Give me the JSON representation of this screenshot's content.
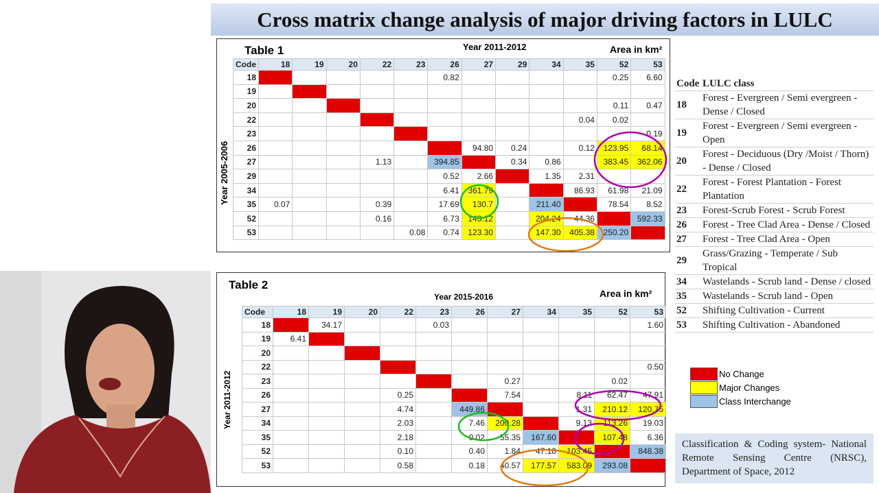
{
  "header": {
    "title": "Cross matrix change analysis of major driving factors in LULC"
  },
  "table1": {
    "title": "Table 1",
    "column_title": "Year 2011-2012",
    "unit": "Area in km²",
    "row_title": "Year 2005-2006",
    "corner": "Code",
    "columns": [
      "18",
      "19",
      "20",
      "22",
      "23",
      "26",
      "27",
      "29",
      "34",
      "35",
      "52",
      "53"
    ],
    "rows": [
      {
        "code": "18",
        "cells": [
          {
            "fill": "#e00000"
          },
          null,
          null,
          null,
          null,
          "0.82",
          null,
          null,
          null,
          null,
          "0.25",
          "6.60"
        ]
      },
      {
        "code": "19",
        "cells": [
          null,
          {
            "fill": "#e00000"
          },
          null,
          null,
          null,
          null,
          null,
          null,
          null,
          null,
          null,
          null
        ]
      },
      {
        "code": "20",
        "cells": [
          null,
          null,
          {
            "fill": "#e00000"
          },
          null,
          null,
          null,
          null,
          null,
          null,
          null,
          "0.11",
          "0.47"
        ]
      },
      {
        "code": "22",
        "cells": [
          null,
          null,
          null,
          {
            "fill": "#e00000"
          },
          null,
          null,
          null,
          null,
          null,
          "0.04",
          "0.02",
          null
        ]
      },
      {
        "code": "23",
        "cells": [
          null,
          null,
          null,
          null,
          {
            "fill": "#e00000"
          },
          null,
          null,
          null,
          null,
          null,
          null,
          "0.19"
        ]
      },
      {
        "code": "26",
        "cells": [
          null,
          null,
          null,
          null,
          null,
          {
            "fill": "#e00000"
          },
          "94.80",
          "0.24",
          null,
          "0.12",
          {
            "text": "123.95",
            "fill": "#ffff00"
          },
          {
            "text": "68.14",
            "fill": "#ffff00"
          }
        ]
      },
      {
        "code": "27",
        "cells": [
          null,
          null,
          null,
          "1.13",
          null,
          {
            "text": "394.85",
            "fill": "#9dc3e6"
          },
          {
            "fill": "#e00000"
          },
          "0.34",
          "0.86",
          null,
          {
            "text": "383.45",
            "fill": "#ffff00"
          },
          {
            "text": "362.06",
            "fill": "#ffff00"
          }
        ]
      },
      {
        "code": "29",
        "cells": [
          null,
          null,
          null,
          null,
          null,
          "0.52",
          "2.66",
          {
            "fill": "#e00000"
          },
          "1.35",
          "2.31",
          null,
          null
        ]
      },
      {
        "code": "34",
        "cells": [
          null,
          null,
          null,
          null,
          null,
          "6.41",
          {
            "text": "361.79",
            "fill": "#ffff00"
          },
          null,
          {
            "fill": "#e00000"
          },
          "86.93",
          "61.98",
          "21.09"
        ]
      },
      {
        "code": "35",
        "cells": [
          "0.07",
          null,
          null,
          "0.39",
          null,
          "17.69",
          {
            "text": "130.7",
            "fill": "#ffff00"
          },
          null,
          {
            "text": "211.40",
            "fill": "#9dc3e6"
          },
          {
            "fill": "#e00000"
          },
          "78.54",
          "8.52"
        ]
      },
      {
        "code": "52",
        "cells": [
          null,
          null,
          null,
          "0.16",
          null,
          "6.73",
          {
            "text": "143.12",
            "fill": "#ffff00"
          },
          null,
          {
            "text": "204.24",
            "fill": "#ffff00"
          },
          "44.36",
          {
            "fill": "#e00000"
          },
          {
            "text": "592.33",
            "fill": "#9dc3e6"
          }
        ]
      },
      {
        "code": "53",
        "cells": [
          null,
          null,
          null,
          null,
          "0.08",
          "0.74",
          {
            "text": "123.30",
            "fill": "#ffff00"
          },
          null,
          {
            "text": "147.30",
            "fill": "#ffff00"
          },
          {
            "text": "405.38",
            "fill": "#ffff00"
          },
          {
            "text": "250.20",
            "fill": "#9dc3e6"
          },
          {
            "fill": "#e00000"
          }
        ]
      }
    ]
  },
  "table2": {
    "title": "Table 2",
    "column_title": "Year 2015-2016",
    "unit": "Area in km²",
    "row_title": "Year 2011-2012",
    "corner": "Code",
    "columns": [
      "18",
      "19",
      "20",
      "22",
      "23",
      "26",
      "27",
      "34",
      "35",
      "52",
      "53"
    ],
    "rows": [
      {
        "code": "18",
        "cells": [
          {
            "fill": "#e00000"
          },
          "34.17",
          null,
          null,
          "0.03",
          null,
          null,
          null,
          null,
          null,
          "1.60"
        ]
      },
      {
        "code": "19",
        "cells": [
          "6.41",
          {
            "fill": "#e00000"
          },
          null,
          null,
          null,
          null,
          null,
          null,
          null,
          null,
          null
        ]
      },
      {
        "code": "20",
        "cells": [
          null,
          null,
          {
            "fill": "#e00000"
          },
          null,
          null,
          null,
          null,
          null,
          null,
          null,
          null
        ]
      },
      {
        "code": "22",
        "cells": [
          null,
          null,
          null,
          {
            "fill": "#e00000"
          },
          null,
          null,
          null,
          null,
          null,
          null,
          "0.50"
        ]
      },
      {
        "code": "23",
        "cells": [
          null,
          null,
          null,
          null,
          {
            "fill": "#e00000"
          },
          null,
          "0.27",
          null,
          null,
          "0.02",
          null
        ]
      },
      {
        "code": "26",
        "cells": [
          null,
          null,
          null,
          "0.25",
          null,
          {
            "fill": "#e00000"
          },
          "7.54",
          null,
          "8.11",
          "62.47",
          "47.91"
        ]
      },
      {
        "code": "27",
        "cells": [
          null,
          null,
          null,
          "4.74",
          null,
          {
            "text": "449.86",
            "fill": "#9dc3e6"
          },
          {
            "fill": "#e00000"
          },
          null,
          "1.31",
          {
            "text": "210.12",
            "fill": "#ffff00"
          },
          {
            "text": "120.75",
            "fill": "#ffff00"
          }
        ]
      },
      {
        "code": "34",
        "cells": [
          null,
          null,
          null,
          "2.03",
          null,
          "7.46",
          {
            "text": "200.28",
            "fill": "#ffff00"
          },
          {
            "fill": "#e00000"
          },
          "9.13",
          {
            "text": "113.26",
            "fill": "#ffff00"
          },
          "19.03"
        ]
      },
      {
        "code": "35",
        "cells": [
          null,
          null,
          null,
          "2.18",
          null,
          "0.02",
          "55.35",
          {
            "text": "167.60",
            "fill": "#9dc3e6"
          },
          {
            "fill": "#e00000"
          },
          {
            "text": "107.48",
            "fill": "#ffff00"
          },
          "6.36"
        ]
      },
      {
        "code": "52",
        "cells": [
          null,
          null,
          null,
          "0.10",
          null,
          "0.40",
          "1.84",
          "47.18",
          {
            "text": "103.45",
            "fill": "#ffff00"
          },
          {
            "fill": "#e00000"
          },
          {
            "text": "848.38",
            "fill": "#9dc3e6"
          }
        ]
      },
      {
        "code": "53",
        "cells": [
          null,
          null,
          null,
          "0.58",
          null,
          "0.18",
          "40.57",
          {
            "text": "177.57",
            "fill": "#ffff00"
          },
          {
            "text": "583.09",
            "fill": "#ffff00"
          },
          {
            "text": "293.08",
            "fill": "#9dc3e6"
          },
          {
            "fill": "#e00000"
          }
        ]
      }
    ]
  },
  "classes": {
    "header": [
      "Code",
      "LULC class"
    ],
    "rows": [
      [
        "18",
        "Forest - Evergreen / Semi evergreen - Dense / Closed"
      ],
      [
        "19",
        "Forest - Evergreen / Semi evergreen - Open"
      ],
      [
        "20",
        "Forest - Deciduous (Dry /Moist / Thorn) - Dense / Closed"
      ],
      [
        "22",
        "Forest - Forest Plantation - Forest Plantation"
      ],
      [
        "23",
        "Forest-Scrub Forest - Scrub Forest"
      ],
      [
        "26",
        "Forest - Tree Clad Area - Dense / Closed"
      ],
      [
        "27",
        "Forest - Tree Clad Area - Open"
      ],
      [
        "29",
        "Grass/Grazing - Temperate / Sub Tropical"
      ],
      [
        "34",
        "Wastelands - Scrub land - Dense / closed"
      ],
      [
        "35",
        "Wastelands - Scrub land - Open"
      ],
      [
        "52",
        "Shifting Cultivation - Current"
      ],
      [
        "53",
        "Shifting Cultivation - Abandoned"
      ]
    ]
  },
  "legend": {
    "items": [
      {
        "label": "No Change",
        "color": "#e00000"
      },
      {
        "label": "Major Changes",
        "color": "#ffff00"
      },
      {
        "label": "Class Interchange",
        "color": "#9dc3e6"
      }
    ]
  },
  "footnote": {
    "text": "Classification & Coding system- National Remote Sensing Centre (NRSC), Department of Space, 2012"
  }
}
